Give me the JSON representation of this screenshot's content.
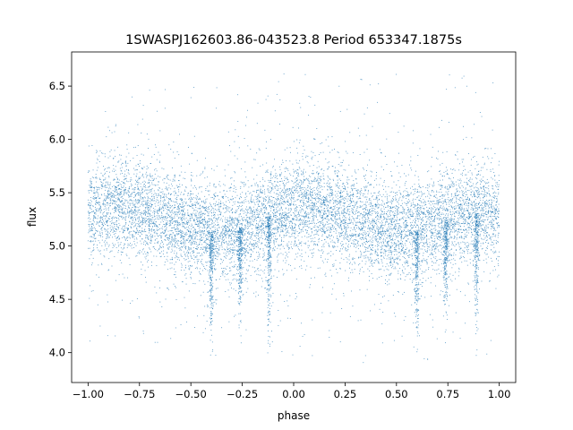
{
  "chart_data": {
    "type": "scatter",
    "title": "1SWASPJ162603.86-043523.8 Period 653347.1875s",
    "xlabel": "phase",
    "ylabel": "flux",
    "xlim": [
      -1.08,
      1.08
    ],
    "ylim": [
      3.72,
      6.82
    ],
    "xticks": [
      -1.0,
      -0.75,
      -0.5,
      -0.25,
      0.0,
      0.25,
      0.5,
      0.75,
      1.0
    ],
    "xtick_labels": [
      "−1.00",
      "−0.75",
      "−0.50",
      "−0.25",
      "0.00",
      "0.25",
      "0.50",
      "0.75",
      "1.00"
    ],
    "yticks": [
      4.0,
      4.5,
      5.0,
      5.5,
      6.0,
      6.5
    ],
    "ytick_labels": [
      "4.0",
      "4.5",
      "5.0",
      "5.5",
      "6.0",
      "6.5"
    ],
    "grid": false,
    "legend": "none",
    "marker_color": "#1f77b4",
    "profile": {
      "phase": [
        -1.0,
        -0.9,
        -0.8,
        -0.7,
        -0.6,
        -0.5,
        -0.4,
        -0.3,
        -0.2,
        -0.1,
        0.0,
        0.1,
        0.2,
        0.3,
        0.4,
        0.5,
        0.6,
        0.7,
        0.8,
        0.9,
        1.0
      ],
      "flux_median": [
        5.32,
        5.36,
        5.37,
        5.31,
        5.24,
        5.16,
        5.13,
        5.14,
        5.2,
        5.3,
        5.36,
        5.37,
        5.32,
        5.25,
        5.17,
        5.13,
        5.15,
        5.2,
        5.28,
        5.31,
        5.3
      ],
      "flux_scatter": 0.22,
      "flux_min": 3.88,
      "flux_max": 6.62
    },
    "dips": [
      {
        "phase": -0.4,
        "min_flux": 4.15
      },
      {
        "phase": -0.26,
        "min_flux": 4.35
      },
      {
        "phase": -0.12,
        "min_flux": 4.2
      },
      {
        "phase": 0.6,
        "min_flux": 4.15
      },
      {
        "phase": 0.74,
        "min_flux": 4.4
      },
      {
        "phase": 0.89,
        "min_flux": 4.25
      }
    ]
  }
}
